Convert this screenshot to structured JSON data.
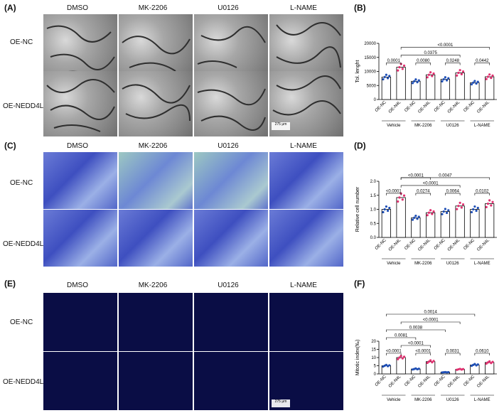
{
  "panels": {
    "A": {
      "letter": "(A)",
      "columns": [
        "DMSO",
        "MK-2206",
        "U0126",
        "L-NAME"
      ],
      "rows": [
        "OE-NC",
        "OE-NEDD4L"
      ],
      "scale_label": "275 μm"
    },
    "B": {
      "letter": "(B)"
    },
    "C": {
      "letter": "(C)",
      "columns": [
        "DMSO",
        "MK-2206",
        "U0126",
        "L-NAME"
      ],
      "rows": [
        "OE-NC",
        "OE-NEDD4L"
      ]
    },
    "D": {
      "letter": "(D)"
    },
    "E": {
      "letter": "(E)",
      "columns": [
        "DMSO",
        "MK-2206",
        "U0126",
        "L-NAME"
      ],
      "rows": [
        "OE-NC",
        "OE-NEDD4L"
      ],
      "scale_label": "275 μm"
    },
    "F": {
      "letter": "(F)"
    }
  },
  "chart_data": [
    {
      "panel": "B",
      "type": "bar",
      "ylabel": "Tol. lenght",
      "ylim": [
        0,
        20000
      ],
      "yticks": [
        "0",
        "5000",
        "10000",
        "15000",
        "20000"
      ],
      "categories": [
        "OE-NC",
        "OE-N4L",
        "OE-NC",
        "OE-N4L",
        "OE-NC",
        "OE-N4L",
        "OE-NC",
        "OE-N4L"
      ],
      "groups": [
        "Vehicle",
        "MK-2206",
        "U0126",
        "L-NAME"
      ],
      "values": [
        8000,
        11500,
        6500,
        8800,
        7200,
        9500,
        6000,
        8100
      ],
      "colors": [
        "#1f4fb5",
        "#e0306f",
        "#1f4fb5",
        "#e0306f",
        "#1f4fb5",
        "#e0306f",
        "#1f4fb5",
        "#e0306f"
      ],
      "comparisons": [
        {
          "from": 0,
          "to": 1,
          "label": "0.0001",
          "level": 1
        },
        {
          "from": 2,
          "to": 3,
          "label": "0.0080",
          "level": 1
        },
        {
          "from": 4,
          "to": 5,
          "label": "0.0248",
          "level": 1
        },
        {
          "from": 6,
          "to": 7,
          "label": "0.0442",
          "level": 1
        },
        {
          "from": 1,
          "to": 5,
          "label": "0.0375",
          "level": 2
        },
        {
          "from": 1,
          "to": 7,
          "label": "<0.0001",
          "level": 3
        }
      ]
    },
    {
      "panel": "D",
      "type": "bar",
      "ylabel": "Relative cell number",
      "ylim": [
        0,
        2.0
      ],
      "yticks": [
        "0.0",
        "0.5",
        "1.0",
        "1.5",
        "2.0"
      ],
      "categories": [
        "OE-NC",
        "OE-N4L",
        "OE-NC",
        "OE-N4L",
        "OE-NC",
        "OE-N4L",
        "OE-NC",
        "OE-N4L"
      ],
      "groups": [
        "Vehicle",
        "MK-2206",
        "U0126",
        "L-NAME"
      ],
      "values": [
        1.0,
        1.42,
        0.7,
        0.88,
        0.92,
        1.12,
        1.0,
        1.2
      ],
      "colors": [
        "#1f4fb5",
        "#e0306f",
        "#1f4fb5",
        "#e0306f",
        "#1f4fb5",
        "#e0306f",
        "#1f4fb5",
        "#e0306f"
      ],
      "comparisons": [
        {
          "from": 0,
          "to": 1,
          "label": "<0.0001",
          "level": 1
        },
        {
          "from": 2,
          "to": 3,
          "label": "0.0274",
          "level": 1
        },
        {
          "from": 4,
          "to": 5,
          "label": "0.0064",
          "level": 1
        },
        {
          "from": 6,
          "to": 7,
          "label": "0.0102",
          "level": 1
        },
        {
          "from": 1,
          "to": 5,
          "label": "<0.0001",
          "level": 2
        },
        {
          "from": 1,
          "to": 3,
          "label": "<0.0001",
          "level": 3
        },
        {
          "from": 1,
          "to": 7,
          "label": "0.0047",
          "level": 3
        }
      ]
    },
    {
      "panel": "F",
      "type": "bar",
      "ylabel": "Mitotic index(‰)",
      "ylim": [
        0,
        20
      ],
      "yticks": [
        "0",
        "5",
        "10",
        "15",
        "20"
      ],
      "categories": [
        "OE-NC",
        "OE-N4L",
        "OE-NC",
        "OE-N4L",
        "OE-NC",
        "OE-N4L",
        "OE-NC",
        "OE-N4L"
      ],
      "groups": [
        "Vehicle",
        "MK-2206",
        "U0126",
        "L-NAME"
      ],
      "values": [
        5,
        10,
        3,
        7.5,
        1,
        2.8,
        5.5,
        7
      ],
      "colors": [
        "#1f4fb5",
        "#e0306f",
        "#1f4fb5",
        "#e0306f",
        "#1f4fb5",
        "#e0306f",
        "#1f4fb5",
        "#e0306f"
      ],
      "comparisons": [
        {
          "from": 0,
          "to": 1,
          "label": "<0.0001",
          "level": 1
        },
        {
          "from": 2,
          "to": 3,
          "label": "<0.0001",
          "level": 1
        },
        {
          "from": 4,
          "to": 5,
          "label": "0.0031",
          "level": 1
        },
        {
          "from": 6,
          "to": 7,
          "label": "0.0610",
          "level": 1
        },
        {
          "from": 1,
          "to": 3,
          "label": "<0.0001",
          "level": 2
        },
        {
          "from": 0,
          "to": 2,
          "label": "0.0081",
          "level": 3
        },
        {
          "from": 0,
          "to": 4,
          "label": "0.0038",
          "level": 4
        },
        {
          "from": 1,
          "to": 5,
          "label": "<0.0001",
          "level": 5
        },
        {
          "from": 0,
          "to": 6,
          "label": "0.0014",
          "level": 6
        }
      ]
    }
  ]
}
